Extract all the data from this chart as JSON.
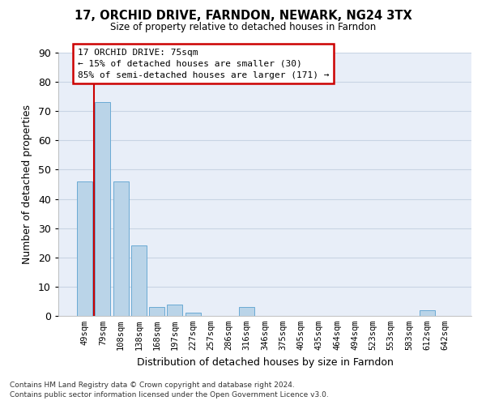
{
  "title_line1": "17, ORCHID DRIVE, FARNDON, NEWARK, NG24 3TX",
  "title_line2": "Size of property relative to detached houses in Farndon",
  "xlabel": "Distribution of detached houses by size in Farndon",
  "ylabel": "Number of detached properties",
  "categories": [
    "49sqm",
    "79sqm",
    "108sqm",
    "138sqm",
    "168sqm",
    "197sqm",
    "227sqm",
    "257sqm",
    "286sqm",
    "316sqm",
    "346sqm",
    "375sqm",
    "405sqm",
    "435sqm",
    "464sqm",
    "494sqm",
    "523sqm",
    "553sqm",
    "583sqm",
    "612sqm",
    "642sqm"
  ],
  "values": [
    46,
    73,
    46,
    24,
    3,
    4,
    1,
    0,
    0,
    3,
    0,
    0,
    0,
    0,
    0,
    0,
    0,
    0,
    0,
    2,
    0
  ],
  "bar_color": "#bad4e8",
  "bar_edge_color": "#6aaad4",
  "grid_color": "#c8d4e4",
  "background_color": "#e8eef8",
  "annotation_line1": "17 ORCHID DRIVE: 75sqm",
  "annotation_line2": "← 15% of detached houses are smaller (30)",
  "annotation_line3": "85% of semi-detached houses are larger (171) →",
  "annotation_box_color": "#ffffff",
  "annotation_box_edge": "#cc0000",
  "vline_color": "#cc0000",
  "vline_x": 0.5,
  "ylim": [
    0,
    90
  ],
  "yticks": [
    0,
    10,
    20,
    30,
    40,
    50,
    60,
    70,
    80,
    90
  ],
  "footnote1": "Contains HM Land Registry data © Crown copyright and database right 2024.",
  "footnote2": "Contains public sector information licensed under the Open Government Licence v3.0."
}
